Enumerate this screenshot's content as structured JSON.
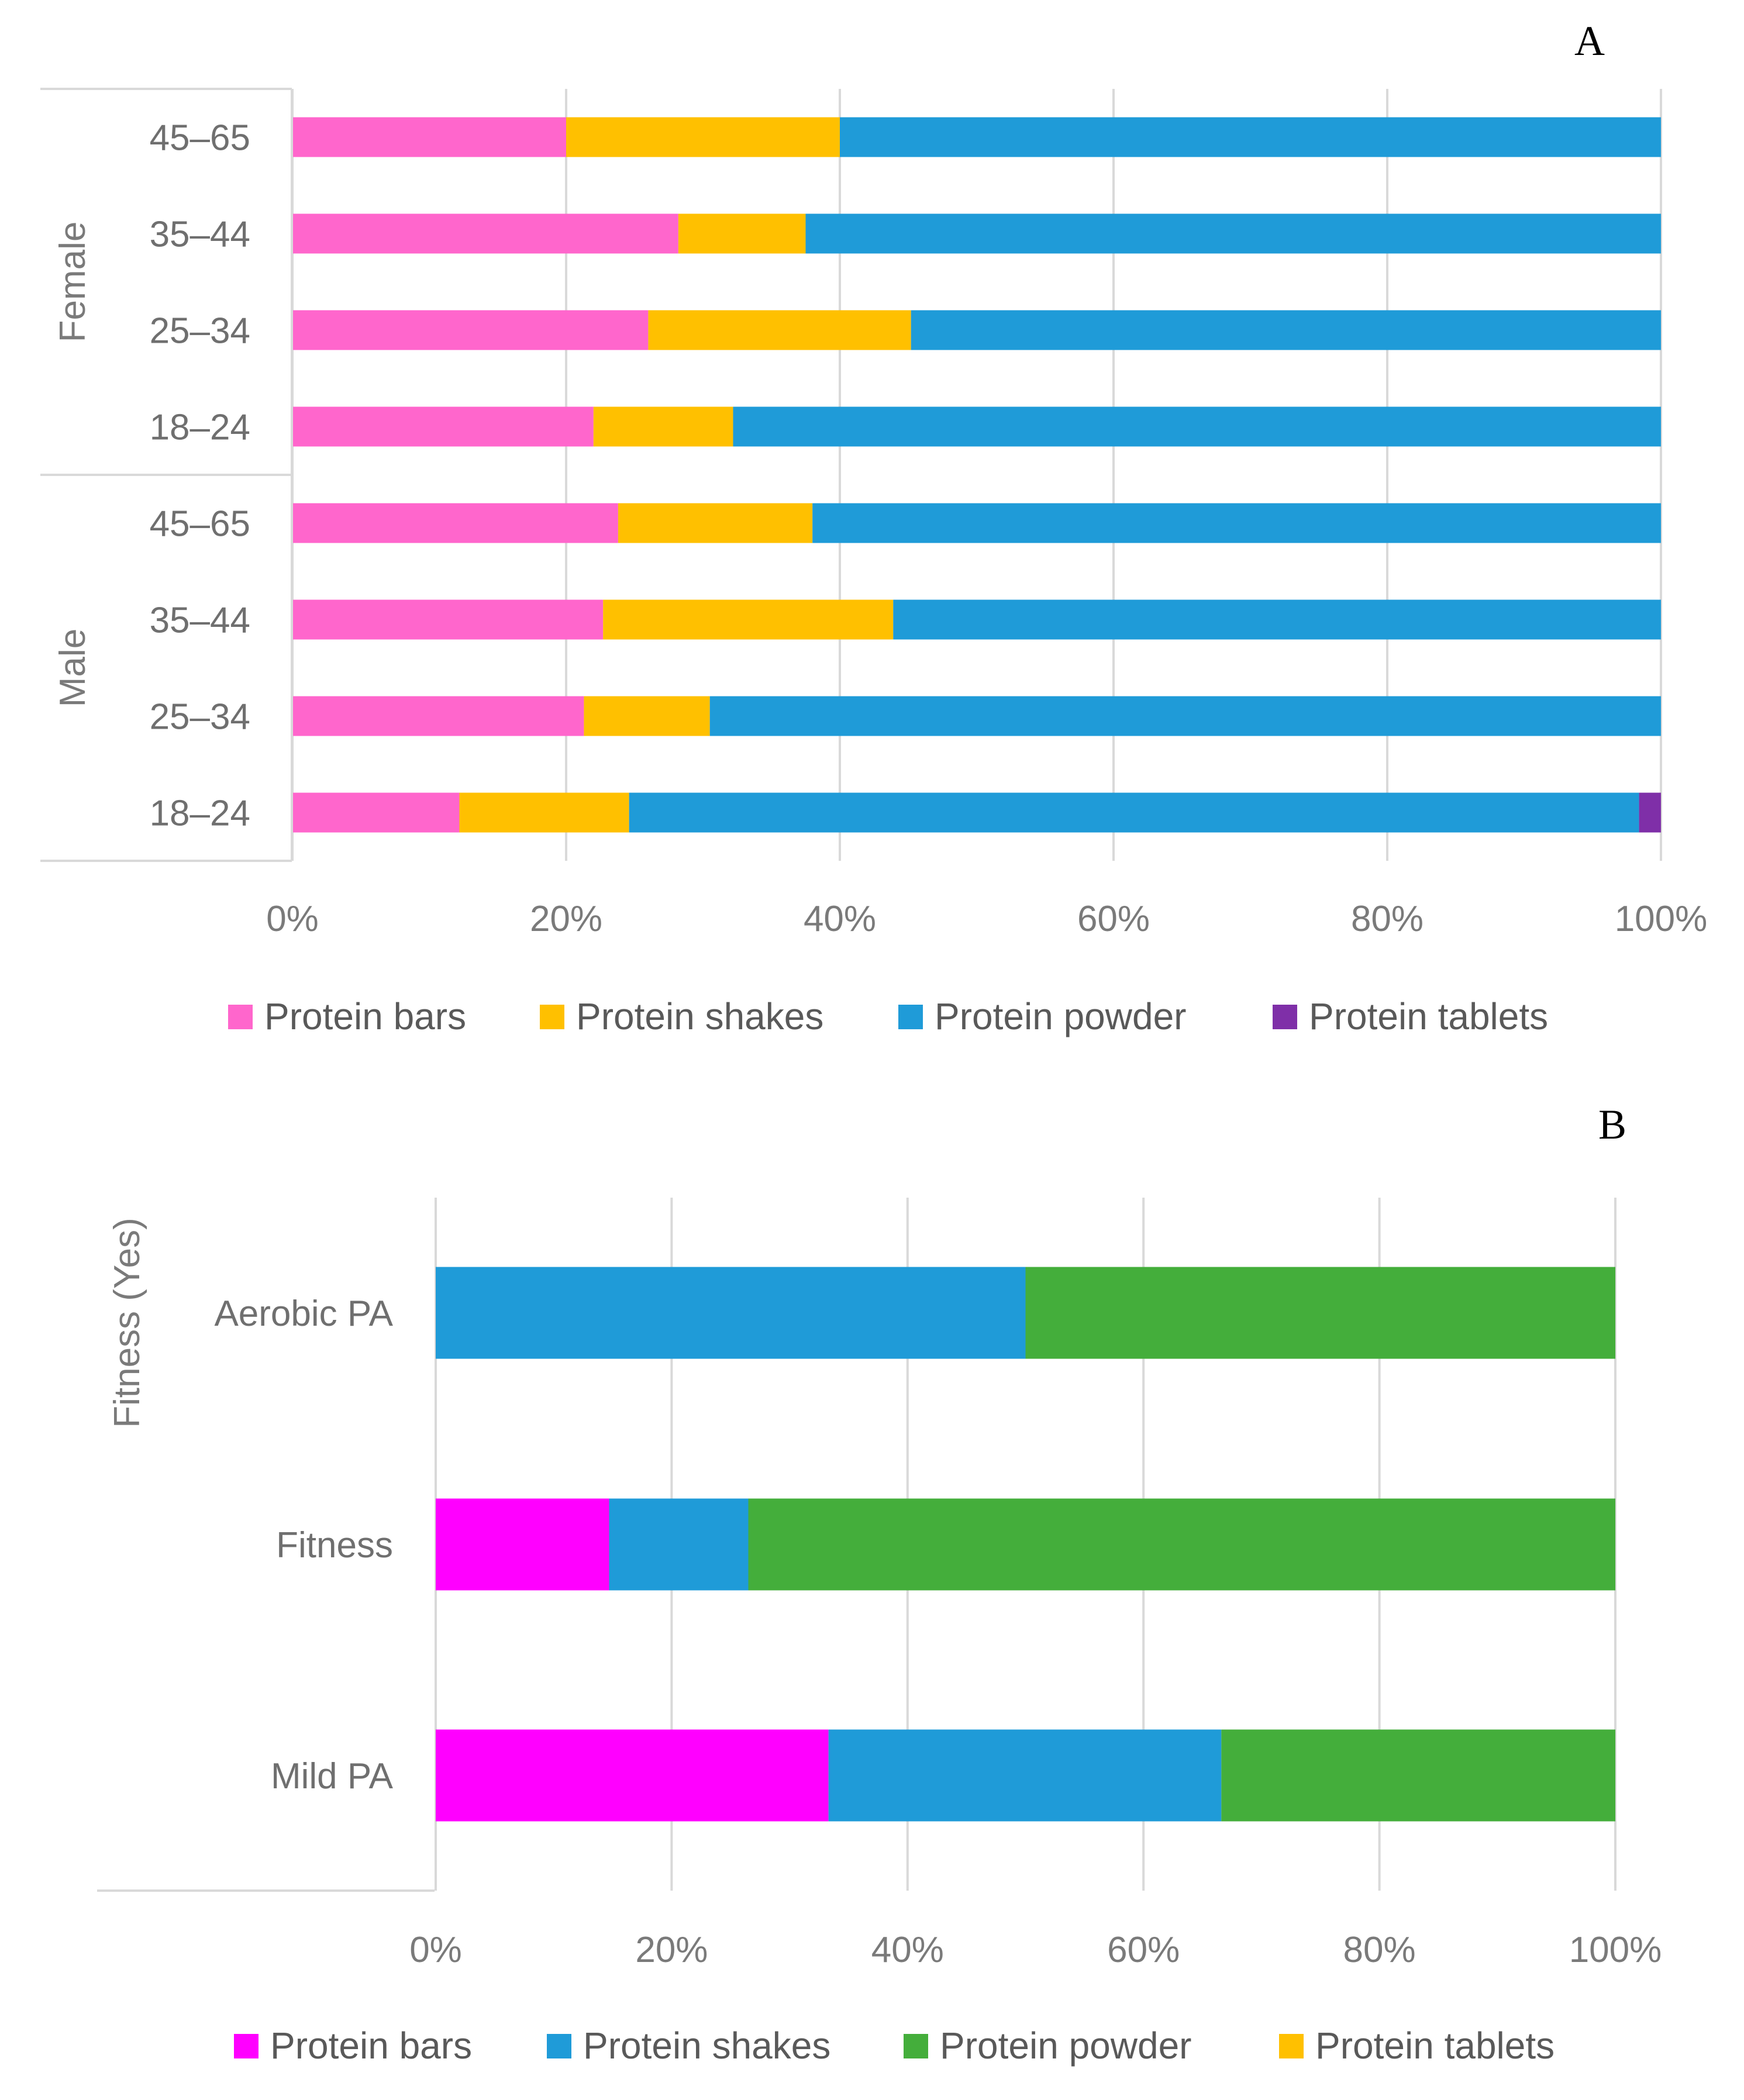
{
  "chart_data": [
    {
      "type": "bar",
      "orientation": "horizontal",
      "stacked": "percent",
      "panel_label": "A",
      "title": "",
      "xlabel": "",
      "ylabel": "",
      "xlim": [
        0,
        100
      ],
      "x_ticks": [
        "0%",
        "20%",
        "40%",
        "60%",
        "80%",
        "100%"
      ],
      "groups": [
        {
          "name": "Female",
          "categories": [
            "45–65",
            "35–44",
            "25–34",
            "18–24"
          ]
        },
        {
          "name": "Male",
          "categories": [
            "45–65",
            "35–44",
            "25–34",
            "18–24"
          ]
        }
      ],
      "series": [
        {
          "name": "Protein bars",
          "color": "#FF66CC",
          "values": [
            20,
            28.2,
            26,
            22,
            23.8,
            22.7,
            21.3,
            12.2
          ]
        },
        {
          "name": "Protein shakes",
          "color": "#FFC000",
          "values": [
            20,
            9.3,
            19.2,
            10.2,
            14.2,
            21.2,
            9.2,
            12.4
          ]
        },
        {
          "name": "Protein powder",
          "color": "#1F9BD8",
          "values": [
            60,
            62.5,
            54.8,
            67.8,
            62,
            56.1,
            69.5,
            73.8
          ]
        },
        {
          "name": "Protein tablets",
          "color": "#7F2FA8",
          "values": [
            0,
            0,
            0,
            0,
            0,
            0,
            0,
            1.6
          ]
        }
      ],
      "legend_position": "bottom",
      "grid": true
    },
    {
      "type": "bar",
      "orientation": "horizontal",
      "stacked": "percent",
      "panel_label": "B",
      "title": "",
      "xlabel": "",
      "ylabel": "Fitness (Yes)",
      "xlim": [
        0,
        100
      ],
      "x_ticks": [
        "0%",
        "20%",
        "40%",
        "60%",
        "80%",
        "100%"
      ],
      "categories": [
        "Aerobic PA",
        "Fitness",
        "Mild PA"
      ],
      "series": [
        {
          "name": "Protein bars",
          "color": "#FF00FF",
          "values": [
            0,
            14.7,
            33.3
          ]
        },
        {
          "name": "Protein shakes",
          "color": "#1F9BD8",
          "values": [
            50,
            11.8,
            33.3
          ]
        },
        {
          "name": "Protein powder",
          "color": "#44AE3B",
          "values": [
            50,
            73.5,
            33.4
          ]
        },
        {
          "name": "Protein tablets",
          "color": "#FFC000",
          "values": [
            0,
            0,
            0
          ]
        }
      ],
      "legend_position": "bottom",
      "grid": true
    }
  ]
}
